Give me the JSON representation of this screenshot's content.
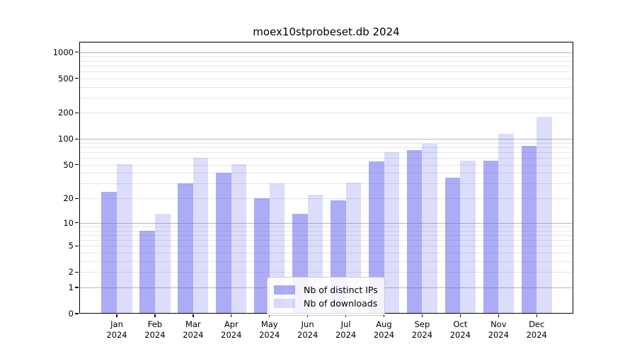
{
  "chart": {
    "title": "moex10stprobeset.db 2024"
  },
  "chart_data": {
    "type": "bar",
    "title": "moex10stprobeset.db 2024",
    "categories": [
      "Jan 2024",
      "Feb 2024",
      "Mar 2024",
      "Apr 2024",
      "May 2024",
      "Jun 2024",
      "Jul 2024",
      "Aug 2024",
      "Sep 2024",
      "Oct 2024",
      "Nov 2024",
      "Dec 2024"
    ],
    "series": [
      {
        "name": "Nb of distinct IPs",
        "base_color": "#6666ee",
        "alpha": 0.55,
        "values": [
          24,
          8,
          30,
          40,
          20,
          13,
          19,
          55,
          74,
          35,
          56,
          84
        ]
      },
      {
        "name": "Nb of downloads",
        "base_color": "#6666ee",
        "alpha": 0.23,
        "values": [
          51,
          13,
          60,
          51,
          30,
          22,
          31,
          70,
          88,
          56,
          115,
          182
        ]
      }
    ],
    "xlabel": "",
    "ylabel": "",
    "yscale": "log1p",
    "yticks": [
      0,
      1,
      2,
      5,
      10,
      20,
      50,
      100,
      200,
      500,
      1000
    ],
    "ylim": [
      0,
      1320
    ],
    "grid": "horizontal-major-and-minor",
    "legend_position": "inside-bottom-center"
  }
}
